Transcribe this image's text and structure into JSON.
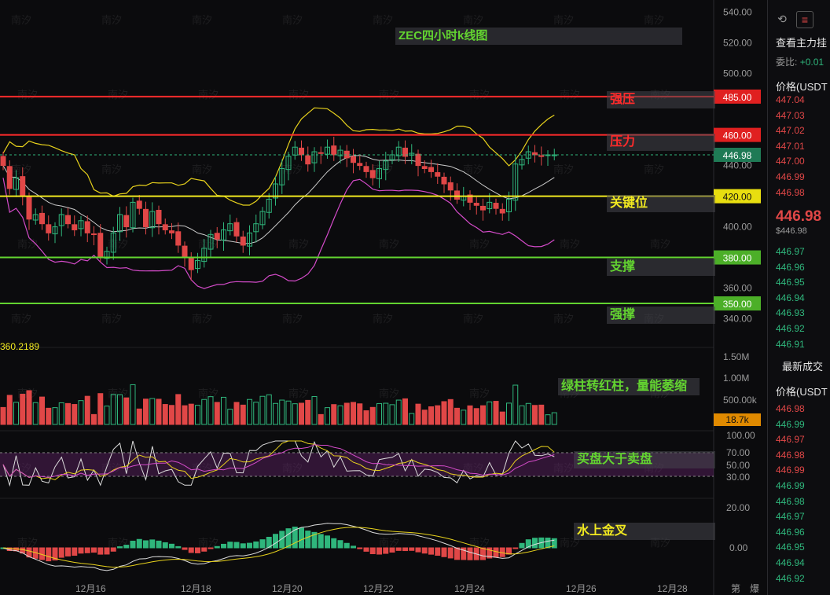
{
  "chart_data": {
    "type": "candlestick",
    "title": "ZEC四小时k线图",
    "price_axis": {
      "ylim": [
        330,
        545
      ],
      "ticks": [
        "540.00",
        "520.00",
        "500.00",
        "440.00",
        "400.00",
        "360.00",
        "340.00"
      ],
      "grid": false
    },
    "horizontal_levels": [
      {
        "label": "强压",
        "value": 485.0,
        "badge": "485.00",
        "color": "#ff2b2b"
      },
      {
        "label": "压力",
        "value": 460.0,
        "badge": "460.00",
        "color": "#ff2b2b"
      },
      {
        "label": "关键位",
        "value": 420.0,
        "badge": "420.00",
        "color": "#f2ea20"
      },
      {
        "label": "支撑",
        "value": 380.0,
        "badge": "380.00",
        "color": "#63d430"
      },
      {
        "label": "强撑",
        "value": 350.0,
        "badge": "350.00",
        "color": "#63d430"
      }
    ],
    "last_price": {
      "value": 446.98,
      "badge": "446.98"
    },
    "low_marker": "360.2189",
    "x_labels": [
      "12月16",
      "12月18",
      "12月20",
      "12月22",
      "12月24",
      "12月26",
      "12月28"
    ],
    "x_extra": [
      "第",
      "爆"
    ],
    "closes": [
      440,
      425,
      432,
      420,
      405,
      408,
      402,
      396,
      400,
      408,
      402,
      398,
      404,
      396,
      395,
      380,
      384,
      396,
      408,
      400,
      416,
      412,
      400,
      410,
      402,
      398,
      396,
      388,
      380,
      372,
      378,
      386,
      395,
      392,
      398,
      402,
      394,
      388,
      396,
      402,
      410,
      418,
      428,
      438,
      446,
      452,
      447,
      441,
      449,
      448,
      452,
      447,
      450,
      445,
      442,
      440,
      436,
      432,
      438,
      443,
      447,
      452,
      446,
      448,
      440,
      438,
      436,
      433,
      428,
      424,
      418,
      420,
      416,
      414,
      411,
      416,
      412,
      409,
      418,
      441,
      444,
      449,
      447,
      446,
      447,
      446.98
    ],
    "volume_panel": {
      "axis_ticks": [
        "1.50M",
        "1.00M",
        "500.00k"
      ],
      "current_badge": "18.7k",
      "annotation": "绿柱转红柱，量能萎缩"
    },
    "rsi_panel": {
      "axis_ticks": [
        "100.00",
        "70.00",
        "50.00",
        "30.00"
      ],
      "annotation": "买盘大于卖盘"
    },
    "macd_panel": {
      "axis_ticks": [
        "20.00",
        "0.00"
      ],
      "annotation": "水上金叉"
    }
  },
  "sidebar": {
    "title": "查看主力挂",
    "ratio_label": "委比:",
    "ratio_value": "+0.01",
    "price_header": "价格(USDT",
    "asks": [
      "447.04",
      "447.03",
      "447.02",
      "447.01",
      "447.00",
      "446.99",
      "446.98"
    ],
    "last_price": "446.98",
    "last_price_sub": "$446.98",
    "bids": [
      "446.97",
      "446.96",
      "446.95",
      "446.94",
      "446.93",
      "446.92",
      "446.91"
    ],
    "trades_header": "最新成交",
    "trades_price_header": "价格(USDT",
    "trades": [
      {
        "p": "446.98",
        "s": "red"
      },
      {
        "p": "446.99",
        "s": "green"
      },
      {
        "p": "446.97",
        "s": "red"
      },
      {
        "p": "446.98",
        "s": "red"
      },
      {
        "p": "446.99",
        "s": "red"
      },
      {
        "p": "446.99",
        "s": "green"
      },
      {
        "p": "446.98",
        "s": "green"
      },
      {
        "p": "446.97",
        "s": "green"
      },
      {
        "p": "446.96",
        "s": "green"
      },
      {
        "p": "446.95",
        "s": "green"
      },
      {
        "p": "446.94",
        "s": "green"
      },
      {
        "p": "446.92",
        "s": "green"
      }
    ]
  },
  "watermark": "南汐",
  "colors": {
    "up": "#2fb67c",
    "down": "#e04747",
    "bg": "#0b0b0d"
  }
}
